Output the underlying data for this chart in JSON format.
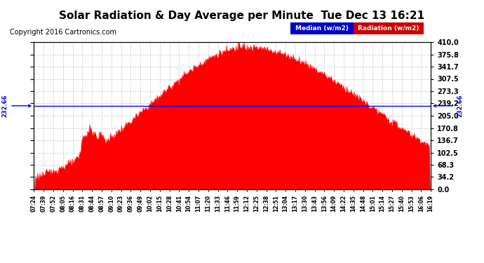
{
  "title": "Solar Radiation & Day Average per Minute  Tue Dec 13 16:21",
  "copyright_text": "Copyright 2016 Cartronics.com",
  "median_value": 232.66,
  "ymin": 0.0,
  "ymax": 410.0,
  "yticks": [
    0.0,
    34.2,
    68.3,
    102.5,
    136.7,
    170.8,
    205.0,
    239.2,
    273.3,
    307.5,
    341.7,
    375.8,
    410.0
  ],
  "x_labels": [
    "07:24",
    "07:39",
    "07:52",
    "08:05",
    "08:16",
    "08:31",
    "08:44",
    "08:57",
    "09:10",
    "09:23",
    "09:36",
    "09:49",
    "10:02",
    "10:15",
    "10:28",
    "10:41",
    "10:54",
    "11:07",
    "11:20",
    "11:33",
    "11:46",
    "11:59",
    "12:12",
    "12:25",
    "12:38",
    "12:51",
    "13:04",
    "13:17",
    "13:30",
    "13:43",
    "13:56",
    "14:09",
    "14:22",
    "14:35",
    "14:48",
    "15:01",
    "15:14",
    "15:27",
    "15:40",
    "15:53",
    "16:06",
    "16:19"
  ],
  "fill_color": "#ff0000",
  "line_color": "#ff0000",
  "median_line_color": "#0000ff",
  "median_label_color": "#0000ff",
  "background_color": "#ffffff",
  "grid_color": "#c8c8c8",
  "title_fontsize": 11,
  "copyright_fontsize": 7,
  "legend_median_bg": "#0000cc",
  "legend_radiation_bg": "#cc0000",
  "tick_fontsize": 7,
  "xtick_fontsize": 5.5
}
